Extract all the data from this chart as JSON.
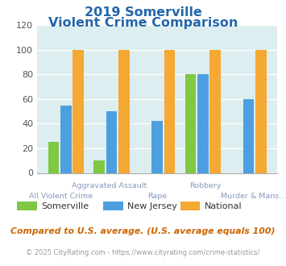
{
  "title_line1": "2019 Somerville",
  "title_line2": "Violent Crime Comparison",
  "title_color": "#2266aa",
  "somerville": [
    25,
    10,
    0,
    80,
    0
  ],
  "new_jersey": [
    55,
    50,
    42,
    80,
    60
  ],
  "national": [
    100,
    100,
    100,
    100,
    100
  ],
  "somerville_color": "#7ec843",
  "nj_color": "#4d9fdf",
  "national_color": "#f5a832",
  "ylim": [
    0,
    120
  ],
  "yticks": [
    0,
    20,
    40,
    60,
    80,
    100,
    120
  ],
  "background_color": "#ddeef0",
  "xlabel_top": [
    "",
    "Aggravated Assault",
    "",
    "Robbery",
    ""
  ],
  "xlabel_bottom": [
    "All Violent Crime",
    "",
    "Rape",
    "",
    "Murder & Mans..."
  ],
  "xlabel_color": "#8899bb",
  "footer_text": "Compared to U.S. average. (U.S. average equals 100)",
  "footer_color": "#cc6600",
  "copyright_text": "© 2025 CityRating.com - https://www.cityrating.com/crime-statistics/",
  "copyright_color": "#999999",
  "legend_labels": [
    "Somerville",
    "New Jersey",
    "National"
  ]
}
